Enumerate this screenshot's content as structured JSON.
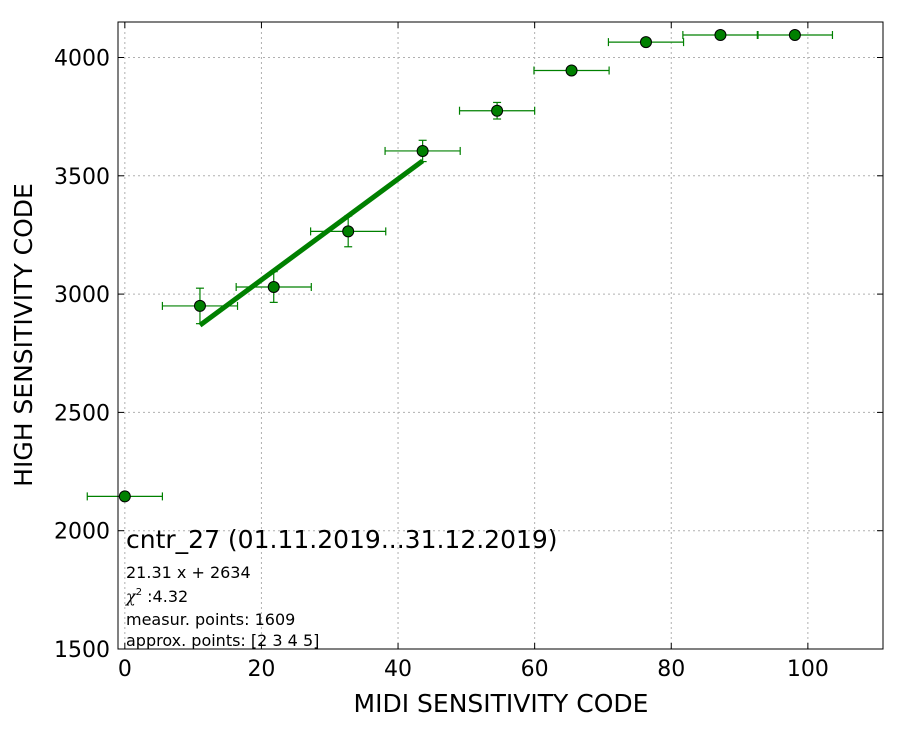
{
  "chart_data": {
    "type": "scatter",
    "xlabel": "MIDI SENSITIVITY CODE",
    "ylabel": "HIGH SENSITIVITY CODE",
    "xlim": [
      -1,
      111
    ],
    "ylim": [
      1500,
      4150
    ],
    "x_ticks": [
      0,
      20,
      40,
      60,
      80,
      100
    ],
    "y_ticks": [
      1500,
      2000,
      2500,
      3000,
      3500,
      4000
    ],
    "grid": true,
    "colors": {
      "series": "#008000",
      "marker_edge": "#000000",
      "grid": "#b0b0b0"
    },
    "series": [
      {
        "marker": "circle",
        "points": [
          {
            "x": 0.0,
            "y": 2145,
            "xerr": 5.5,
            "yerr": 0
          },
          {
            "x": 11.0,
            "y": 2950,
            "xerr": 5.5,
            "yerr": 75
          },
          {
            "x": 21.8,
            "y": 3030,
            "xerr": 5.5,
            "yerr": 65
          },
          {
            "x": 32.7,
            "y": 3265,
            "xerr": 5.5,
            "yerr": 65
          },
          {
            "x": 43.6,
            "y": 3605,
            "xerr": 5.5,
            "yerr": 45
          },
          {
            "x": 54.5,
            "y": 3775,
            "xerr": 5.5,
            "yerr": 35
          },
          {
            "x": 65.4,
            "y": 3945,
            "xerr": 5.5,
            "yerr": 15
          },
          {
            "x": 76.3,
            "y": 4065,
            "xerr": 5.5,
            "yerr": 0
          },
          {
            "x": 87.2,
            "y": 4095,
            "xerr": 5.5,
            "yerr": 0
          },
          {
            "x": 98.1,
            "y": 4095,
            "xerr": 5.5,
            "yerr": 0
          }
        ]
      }
    ],
    "fit": {
      "slope": 21.31,
      "intercept": 2634,
      "x_range": [
        11.0,
        43.6
      ]
    },
    "annotations": {
      "title": "cntr_27 (01.11.2019...31.12.2019)",
      "equation": "21.31 x + 2634",
      "chi_symbol": "χ",
      "chi_power": "2",
      "chi_value": " :4.32",
      "measured": "measur. points: 1609",
      "approx": "approx. points: [2 3 4 5]"
    }
  }
}
